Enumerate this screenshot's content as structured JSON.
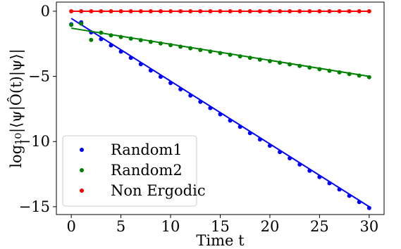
{
  "chart_data": {
    "type": "scatter",
    "title": "",
    "xlabel": "Time t",
    "ylabel": "log₁₀|⟨ψ|Ô(t)|ψ⟩|",
    "xlim": [
      -1.5,
      31.5
    ],
    "ylim": [
      -15.6,
      0.7
    ],
    "xticks": [
      0,
      5,
      10,
      15,
      20,
      25,
      30
    ],
    "yticks": [
      0,
      -5,
      -10,
      -15
    ],
    "xtick_labels": [
      "0",
      "5",
      "10",
      "15",
      "20",
      "25",
      "30"
    ],
    "ytick_labels": [
      "0",
      "−5",
      "−10",
      "−15"
    ],
    "grid": false,
    "legend_position": "bottom-left",
    "x": [
      0,
      1,
      2,
      3,
      4,
      5,
      6,
      7,
      8,
      9,
      10,
      11,
      12,
      13,
      14,
      15,
      16,
      17,
      18,
      19,
      20,
      21,
      22,
      23,
      24,
      25,
      26,
      27,
      28,
      29,
      30
    ],
    "series": [
      {
        "name": "Random1",
        "color": "#0000ff",
        "values": [
          -1.0,
          -0.85,
          -1.62,
          -2.14,
          -2.62,
          -3.1,
          -3.58,
          -4.06,
          -4.55,
          -5.03,
          -5.51,
          -5.99,
          -6.47,
          -6.95,
          -7.43,
          -7.91,
          -8.39,
          -8.87,
          -9.35,
          -9.84,
          -10.32,
          -10.8,
          -11.28,
          -11.76,
          -12.24,
          -12.72,
          -13.2,
          -13.68,
          -14.16,
          -14.64,
          -15.1
        ],
        "fit": {
          "x": [
            0,
            30
          ],
          "y": [
            -0.55,
            -15.0
          ]
        }
      },
      {
        "name": "Random2",
        "color": "#008000",
        "values": [
          -1.05,
          -0.95,
          -2.2,
          -1.65,
          -1.85,
          -1.98,
          -2.1,
          -2.22,
          -2.35,
          -2.47,
          -2.6,
          -2.72,
          -2.84,
          -2.97,
          -3.09,
          -3.21,
          -3.34,
          -3.46,
          -3.58,
          -3.71,
          -3.83,
          -3.95,
          -4.08,
          -4.2,
          -4.32,
          -4.45,
          -4.57,
          -4.69,
          -4.82,
          -4.94,
          -5.06
        ],
        "fit": {
          "x": [
            0,
            30
          ],
          "y": [
            -1.3,
            -5.0
          ]
        }
      },
      {
        "name": "Non Ergodic",
        "color": "#ff0000",
        "values": [
          0,
          0,
          0,
          0,
          0,
          0,
          0,
          0,
          0,
          0,
          0,
          0,
          0,
          0,
          0,
          0,
          0,
          0,
          0,
          0,
          0,
          0,
          0,
          0,
          0,
          0,
          0,
          0,
          0,
          0,
          0
        ],
        "fit": {
          "x": [
            0,
            30
          ],
          "y": [
            0,
            0
          ]
        }
      }
    ]
  }
}
